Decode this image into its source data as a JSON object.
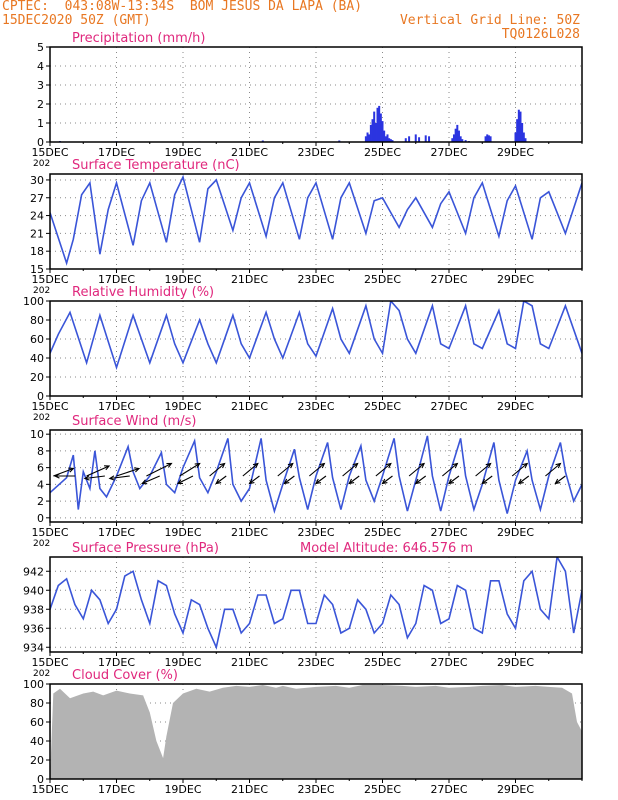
{
  "header": {
    "line1_left": "CPTEC:  043:08W-13:34S  BOM JESUS DA LAPA (BA)",
    "line2_left": "15DEC2020 50Z (GMT)",
    "line2_right": "Vertical Grid Line: 50Z",
    "line3_right": "TQ0126L028"
  },
  "colors": {
    "header": "#e87722",
    "title": "#e0287d",
    "line": "#3a55d8",
    "bar": "#2b34e0",
    "cloud": "#b3b3b3",
    "arrow": "#000000",
    "grid": "#8a8a8a"
  },
  "x_axis": {
    "tick_labels": [
      "15DEC",
      "17DEC",
      "19DEC",
      "21DEC",
      "23DEC",
      "25DEC",
      "27DEC",
      "29DEC"
    ],
    "tick_days": [
      0,
      2,
      4,
      6,
      8,
      10,
      12,
      14
    ],
    "range_days": [
      0,
      16
    ],
    "year_stub": "202"
  },
  "chart_data": [
    {
      "id": "precip",
      "type": "bar",
      "title": "Precipitation (mm/h)",
      "ylim": [
        0,
        5
      ],
      "yticks": [
        0,
        1,
        2,
        3,
        4,
        5
      ],
      "grid": true,
      "x": [
        0.3,
        2.0,
        4.5,
        6.4,
        8.7,
        9.5,
        9.55,
        9.6,
        9.65,
        9.7,
        9.75,
        9.8,
        9.85,
        9.9,
        9.95,
        10.0,
        10.05,
        10.1,
        10.15,
        10.2,
        10.25,
        10.3,
        10.7,
        10.8,
        11.0,
        11.1,
        11.3,
        11.4,
        12.1,
        12.15,
        12.2,
        12.25,
        12.3,
        12.35,
        12.4,
        12.5,
        12.6,
        13.1,
        13.15,
        13.2,
        13.25,
        14.0,
        14.05,
        14.1,
        14.15,
        14.2,
        14.25,
        14.3
      ],
      "values": [
        0.05,
        0.04,
        0.03,
        0.08,
        0.08,
        0.3,
        0.5,
        0.4,
        0.9,
        1.2,
        1.6,
        1.0,
        1.8,
        1.9,
        1.5,
        1.1,
        0.6,
        0.3,
        0.4,
        0.2,
        0.15,
        0.1,
        0.2,
        0.3,
        0.4,
        0.25,
        0.35,
        0.3,
        0.2,
        0.4,
        0.7,
        0.9,
        0.6,
        0.3,
        0.15,
        0.1,
        0.05,
        0.3,
        0.4,
        0.35,
        0.3,
        0.5,
        1.2,
        1.7,
        1.6,
        1.0,
        0.5,
        0.2
      ]
    },
    {
      "id": "temp",
      "type": "line",
      "title": "Surface Temperature (nC)",
      "ylim": [
        15,
        31
      ],
      "yticks": [
        15,
        18,
        21,
        24,
        27,
        30
      ],
      "grid": true,
      "x": [
        0.0,
        0.5,
        0.7,
        0.95,
        1.2,
        1.5,
        1.75,
        2.0,
        2.5,
        2.75,
        3.0,
        3.5,
        3.75,
        4.0,
        4.5,
        4.75,
        5.0,
        5.5,
        5.75,
        6.0,
        6.5,
        6.75,
        7.0,
        7.5,
        7.75,
        8.0,
        8.5,
        8.75,
        9.0,
        9.5,
        9.75,
        10.0,
        10.5,
        10.75,
        11.0,
        11.5,
        11.75,
        12.0,
        12.5,
        12.75,
        13.0,
        13.5,
        13.75,
        14.0,
        14.5,
        14.75,
        15.0,
        15.5,
        16.0
      ],
      "values": [
        24.5,
        16.0,
        20.0,
        27.5,
        29.5,
        17.5,
        25.0,
        29.5,
        19.0,
        26.5,
        29.5,
        19.5,
        27.5,
        30.5,
        19.5,
        28.5,
        30.0,
        21.5,
        27.0,
        29.5,
        20.5,
        27.0,
        29.5,
        20.0,
        27.0,
        29.5,
        20.0,
        27.0,
        29.5,
        21.0,
        26.5,
        27.0,
        22.0,
        25.0,
        27.0,
        22.0,
        26.0,
        28.0,
        21.0,
        27.0,
        29.5,
        20.5,
        26.5,
        29.0,
        20.0,
        27.0,
        28.0,
        21.0,
        29.5
      ]
    },
    {
      "id": "rh",
      "type": "line",
      "title": "Relative Humidity (%)",
      "ylim": [
        0,
        100
      ],
      "yticks": [
        0,
        20,
        40,
        60,
        80,
        100
      ],
      "grid": true,
      "x": [
        0.0,
        0.25,
        0.6,
        1.1,
        1.5,
        2.0,
        2.5,
        2.75,
        3.0,
        3.5,
        3.75,
        4.0,
        4.5,
        4.75,
        5.0,
        5.5,
        5.75,
        6.0,
        6.5,
        6.75,
        7.0,
        7.5,
        7.75,
        8.0,
        8.5,
        8.75,
        9.0,
        9.5,
        9.75,
        10.0,
        10.25,
        10.5,
        10.75,
        11.0,
        11.5,
        11.75,
        12.0,
        12.5,
        12.75,
        13.0,
        13.5,
        13.75,
        14.0,
        14.25,
        14.5,
        14.75,
        15.0,
        15.5,
        16.0
      ],
      "values": [
        45,
        65,
        88,
        35,
        85,
        30,
        85,
        60,
        35,
        85,
        55,
        35,
        80,
        55,
        35,
        85,
        55,
        40,
        88,
        60,
        40,
        88,
        55,
        42,
        92,
        60,
        45,
        95,
        60,
        45,
        100,
        90,
        60,
        45,
        95,
        55,
        50,
        95,
        55,
        50,
        90,
        55,
        50,
        100,
        95,
        55,
        50,
        95,
        45
      ]
    },
    {
      "id": "wind",
      "type": "line",
      "title": "Surface Wind (m/s)",
      "ylim": [
        -0.5,
        10.5
      ],
      "yticks": [
        0,
        2,
        4,
        6,
        8,
        10
      ],
      "grid": true,
      "x": [
        0.0,
        0.5,
        0.7,
        0.85,
        1.0,
        1.2,
        1.35,
        1.5,
        1.7,
        2.0,
        2.35,
        2.5,
        2.7,
        3.0,
        3.35,
        3.5,
        3.75,
        4.0,
        4.35,
        4.5,
        4.75,
        5.0,
        5.35,
        5.5,
        5.75,
        6.0,
        6.35,
        6.5,
        6.75,
        7.0,
        7.35,
        7.5,
        7.75,
        8.0,
        8.35,
        8.5,
        8.75,
        9.0,
        9.35,
        9.5,
        9.75,
        10.0,
        10.35,
        10.5,
        10.75,
        11.0,
        11.35,
        11.5,
        11.75,
        12.0,
        12.35,
        12.5,
        12.75,
        13.0,
        13.35,
        13.5,
        13.75,
        14.0,
        14.35,
        14.5,
        14.75,
        15.0,
        15.35,
        15.5,
        15.75,
        16.0
      ],
      "values": [
        3.0,
        4.8,
        7.5,
        1.0,
        5.5,
        3.5,
        8.0,
        3.5,
        2.5,
        5.0,
        8.5,
        5.5,
        3.5,
        5.0,
        7.8,
        4.0,
        3.0,
        6.0,
        9.2,
        4.8,
        3.0,
        5.5,
        9.5,
        4.0,
        2.0,
        3.5,
        9.5,
        4.5,
        0.8,
        4.0,
        8.2,
        4.8,
        1.0,
        5.0,
        9.0,
        4.8,
        1.0,
        5.0,
        8.6,
        4.5,
        2.0,
        5.0,
        9.5,
        5.0,
        0.8,
        4.5,
        9.8,
        5.0,
        0.8,
        5.0,
        9.5,
        5.0,
        1.0,
        4.0,
        9.0,
        4.5,
        0.5,
        4.5,
        8.0,
        4.5,
        1.0,
        5.0,
        9.0,
        5.5,
        2.0,
        4.0
      ]
    },
    {
      "id": "pressure",
      "type": "line",
      "title": "Surface Pressure (hPa)",
      "annotation": "Model Altitude: 646.576 m",
      "ylim": [
        933.5,
        943.5
      ],
      "yticks": [
        934,
        936,
        938,
        940,
        942
      ],
      "grid": true,
      "x": [
        0.0,
        0.25,
        0.5,
        0.75,
        1.0,
        1.25,
        1.5,
        1.75,
        2.0,
        2.25,
        2.5,
        2.75,
        3.0,
        3.25,
        3.5,
        3.75,
        4.0,
        4.25,
        4.5,
        4.75,
        5.0,
        5.25,
        5.5,
        5.75,
        6.0,
        6.25,
        6.5,
        6.75,
        7.0,
        7.25,
        7.5,
        7.75,
        8.0,
        8.25,
        8.5,
        8.75,
        9.0,
        9.25,
        9.5,
        9.75,
        10.0,
        10.25,
        10.5,
        10.75,
        11.0,
        11.25,
        11.5,
        11.75,
        12.0,
        12.25,
        12.5,
        12.75,
        13.0,
        13.25,
        13.5,
        13.75,
        14.0,
        14.25,
        14.5,
        14.75,
        15.0,
        15.25,
        15.5,
        15.75,
        16.0
      ],
      "values": [
        938.0,
        940.5,
        941.2,
        938.5,
        937.0,
        940.0,
        939.0,
        936.5,
        938.0,
        941.5,
        942.0,
        939.0,
        936.5,
        941.0,
        940.5,
        937.5,
        935.5,
        939.0,
        938.5,
        936.0,
        934.0,
        938.0,
        938.0,
        935.5,
        936.5,
        939.5,
        939.5,
        936.5,
        937.0,
        940.0,
        940.0,
        936.5,
        936.5,
        939.5,
        938.5,
        935.5,
        936.0,
        939.0,
        938.0,
        935.5,
        936.5,
        939.5,
        938.5,
        935.0,
        936.5,
        940.5,
        940.0,
        936.5,
        937.0,
        940.5,
        940.0,
        936.0,
        935.5,
        941.0,
        941.0,
        937.5,
        936.0,
        941.0,
        942.0,
        938.0,
        937.0,
        943.5,
        942.0,
        935.5,
        940.0
      ]
    },
    {
      "id": "cloud",
      "type": "area",
      "title": "Cloud Cover (%)",
      "ylim": [
        0,
        100
      ],
      "yticks": [
        0,
        20,
        40,
        60,
        80,
        100
      ],
      "grid": true,
      "x": [
        0.0,
        0.1,
        0.3,
        0.6,
        1.0,
        1.3,
        1.6,
        2.0,
        2.4,
        2.8,
        3.0,
        3.2,
        3.4,
        3.5,
        3.7,
        4.0,
        4.4,
        4.8,
        5.2,
        5.6,
        6.0,
        6.4,
        6.8,
        7.0,
        7.4,
        8.0,
        8.6,
        9.0,
        9.4,
        10.0,
        10.6,
        11.0,
        11.6,
        12.0,
        12.6,
        13.0,
        13.6,
        14.0,
        14.6,
        15.0,
        15.4,
        15.7,
        15.85,
        16.0
      ],
      "values": [
        0,
        90,
        95,
        85,
        90,
        92,
        88,
        93,
        90,
        88,
        70,
        40,
        22,
        45,
        80,
        90,
        95,
        92,
        96,
        98,
        97,
        99,
        96,
        98,
        95,
        97,
        98,
        96,
        99,
        99,
        98,
        97,
        98,
        96,
        97,
        98,
        99,
        97,
        98,
        97,
        96,
        90,
        60,
        50
      ]
    }
  ],
  "wind_vectors": {
    "x": [
      0.1,
      0.75,
      1.1,
      1.65,
      2.0,
      2.4,
      2.9,
      3.3,
      3.9,
      4.3,
      4.8,
      5.3,
      5.8,
      6.3,
      6.85,
      7.35,
      7.8,
      8.3,
      8.8,
      9.3,
      9.8,
      10.3,
      10.8,
      11.3,
      11.8,
      12.3,
      12.8,
      13.3,
      13.9,
      14.4,
      14.9,
      15.5
    ],
    "u": [
      4.0,
      -4.0,
      4.5,
      -4.0,
      4.5,
      -4.0,
      5.0,
      -3.5,
      4.0,
      -3.0,
      3.0,
      -2.0,
      3.0,
      -2.0,
      3.0,
      -2.0,
      3.0,
      -2.0,
      3.0,
      -2.0,
      3.0,
      -2.0,
      3.0,
      -2.0,
      3.0,
      -2.0,
      3.0,
      -2.0,
      3.0,
      -2.0,
      3.0,
      -2.0
    ],
    "v": [
      1.5,
      0.0,
      2.0,
      -0.5,
      1.5,
      -0.5,
      2.5,
      -1.5,
      2.5,
      -1.5,
      2.5,
      -1.5,
      2.5,
      -1.5,
      2.5,
      -1.5,
      2.5,
      -1.5,
      2.5,
      -1.5,
      2.5,
      -1.5,
      2.5,
      -1.5,
      2.5,
      -1.5,
      2.5,
      -1.5,
      2.5,
      -1.5,
      2.5,
      -1.5
    ]
  }
}
